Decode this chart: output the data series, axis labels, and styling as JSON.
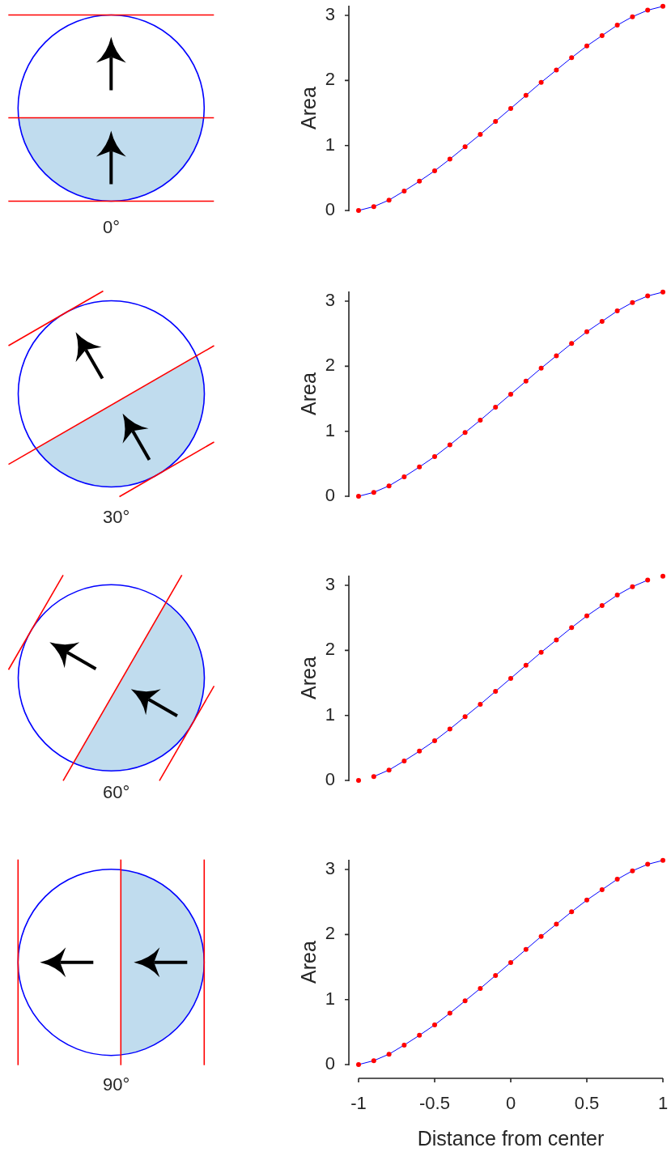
{
  "chart_data": [
    {
      "type": "line",
      "annotations": [
        "0°"
      ],
      "ylabel": "Area",
      "x": [
        -1,
        -0.9,
        -0.8,
        -0.7,
        -0.6,
        -0.5,
        -0.4,
        -0.3,
        -0.2,
        -0.1,
        0,
        0.1,
        0.2,
        0.3,
        0.4,
        0.5,
        0.6,
        0.7,
        0.8,
        0.9,
        1
      ],
      "xlim": [
        -1,
        1
      ],
      "ylim": [
        0,
        3.15
      ],
      "yticks": [
        0,
        1,
        2,
        3
      ],
      "tick_labels": "y",
      "series": [
        {
          "type": "scatter",
          "color": "#ff0000",
          "marker": "circle",
          "values": [
            0,
            0.06,
            0.16,
            0.3,
            0.45,
            0.61,
            0.79,
            0.98,
            1.17,
            1.37,
            1.57,
            1.77,
            1.97,
            2.16,
            2.35,
            2.53,
            2.69,
            2.85,
            2.98,
            3.08,
            3.14
          ]
        },
        {
          "type": "line",
          "color": "#0000ff",
          "values": [
            0,
            0.06,
            0.16,
            0.3,
            0.45,
            0.61,
            0.79,
            0.98,
            1.17,
            1.37,
            1.57,
            1.77,
            1.97,
            2.16,
            2.35,
            2.53,
            2.69,
            2.85,
            2.98,
            3.08,
            3.14
          ]
        }
      ]
    },
    {
      "type": "line",
      "annotations": [
        "30°"
      ],
      "ylabel": "Area",
      "x": [
        -1,
        -0.9,
        -0.8,
        -0.7,
        -0.6,
        -0.5,
        -0.4,
        -0.3,
        -0.2,
        -0.1,
        0,
        0.1,
        0.2,
        0.3,
        0.4,
        0.5,
        0.6,
        0.7,
        0.8,
        0.9,
        1
      ],
      "xlim": [
        -1,
        1
      ],
      "ylim": [
        0,
        3.15
      ],
      "yticks": [
        0,
        1,
        2,
        3
      ],
      "tick_labels": "y",
      "series": [
        {
          "type": "scatter",
          "color": "#ff0000",
          "marker": "circle",
          "values": [
            0,
            0.06,
            0.16,
            0.3,
            0.45,
            0.61,
            0.79,
            0.98,
            1.17,
            1.37,
            1.57,
            1.77,
            1.97,
            2.16,
            2.35,
            2.53,
            2.69,
            2.85,
            2.98,
            3.08,
            3.14
          ]
        },
        {
          "type": "line",
          "color": "#0000ff",
          "values": [
            0,
            0.06,
            0.16,
            0.3,
            0.45,
            0.61,
            0.79,
            0.98,
            1.17,
            1.37,
            1.57,
            1.77,
            1.97,
            2.16,
            2.35,
            2.53,
            2.69,
            2.85,
            2.98,
            3.08,
            3.14
          ]
        }
      ]
    },
    {
      "type": "line",
      "annotations": [
        "60°"
      ],
      "ylabel": "Area",
      "x": [
        -1,
        -0.9,
        -0.8,
        -0.7,
        -0.6,
        -0.5,
        -0.4,
        -0.3,
        -0.2,
        -0.1,
        0,
        0.1,
        0.2,
        0.3,
        0.4,
        0.5,
        0.6,
        0.7,
        0.8,
        0.9,
        1
      ],
      "xlim": [
        -1,
        1
      ],
      "ylim": [
        0,
        3.15
      ],
      "yticks": [
        0,
        1,
        2,
        3
      ],
      "tick_labels": "y",
      "series": [
        {
          "type": "scatter",
          "color": "#ff0000",
          "marker": "circle",
          "values": [
            0,
            0.06,
            0.16,
            0.3,
            0.45,
            0.61,
            0.79,
            0.98,
            1.17,
            1.37,
            1.57,
            1.77,
            1.97,
            2.16,
            2.35,
            2.53,
            2.69,
            2.85,
            2.98,
            3.08,
            3.14
          ]
        },
        {
          "type": "line",
          "color": "#0000ff",
          "values": [
            null,
            0.06,
            0.16,
            0.3,
            0.45,
            0.61,
            0.79,
            0.98,
            1.17,
            1.37,
            1.57,
            1.77,
            1.97,
            2.16,
            2.35,
            2.53,
            2.69,
            2.85,
            2.98,
            3.08,
            null
          ]
        }
      ]
    },
    {
      "type": "line",
      "annotations": [
        "90°"
      ],
      "xlabel": "Distance from center",
      "ylabel": "Area",
      "x": [
        -1,
        -0.9,
        -0.8,
        -0.7,
        -0.6,
        -0.5,
        -0.4,
        -0.3,
        -0.2,
        -0.1,
        0,
        0.1,
        0.2,
        0.3,
        0.4,
        0.5,
        0.6,
        0.7,
        0.8,
        0.9,
        1
      ],
      "xlim": [
        -1,
        1
      ],
      "ylim": [
        0,
        3.15
      ],
      "xticks": [
        -1,
        -0.5,
        0,
        0.5,
        1
      ],
      "yticks": [
        0,
        1,
        2,
        3
      ],
      "series": [
        {
          "type": "scatter",
          "color": "#ff0000",
          "marker": "circle",
          "values": [
            0,
            0.06,
            0.16,
            0.3,
            0.45,
            0.61,
            0.79,
            0.98,
            1.17,
            1.37,
            1.57,
            1.77,
            1.97,
            2.16,
            2.35,
            2.53,
            2.69,
            2.85,
            2.98,
            3.08,
            3.14
          ]
        },
        {
          "type": "line",
          "color": "#0000ff",
          "values": [
            0,
            0.06,
            0.16,
            0.3,
            0.45,
            0.61,
            0.79,
            0.98,
            1.17,
            1.37,
            1.57,
            1.77,
            1.97,
            2.16,
            2.35,
            2.53,
            2.69,
            2.85,
            2.98,
            3.08,
            3.14
          ]
        }
      ]
    }
  ]
}
